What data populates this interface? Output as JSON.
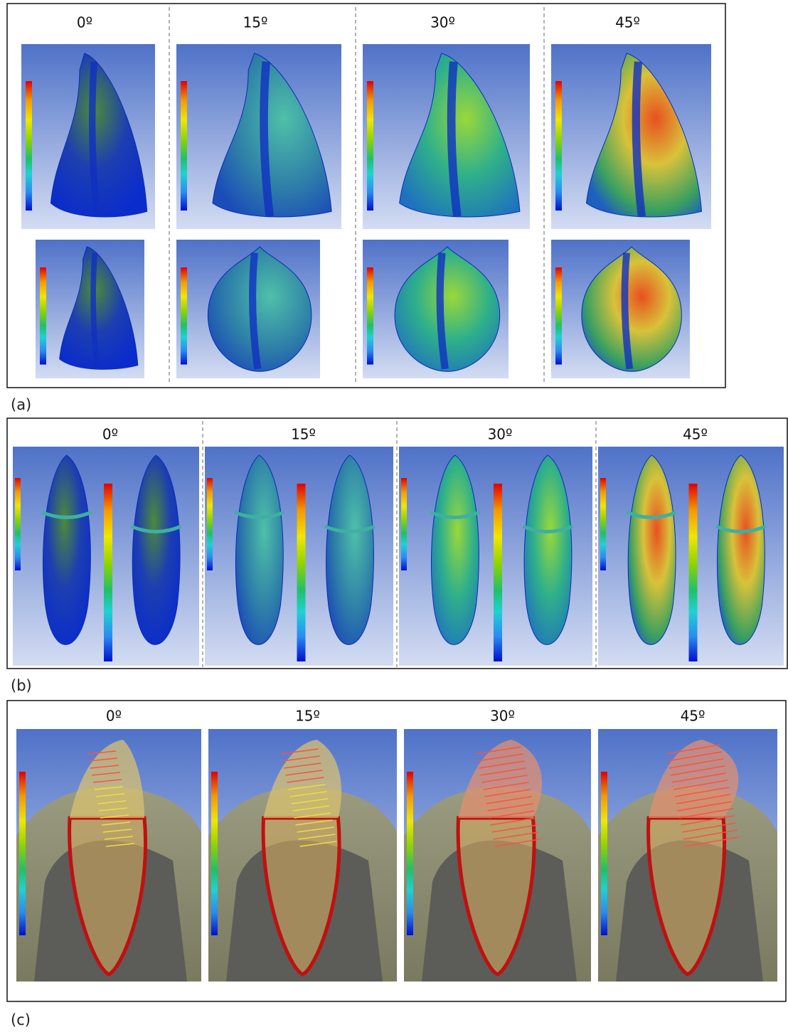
{
  "panels": [
    {
      "label": "(a)",
      "angles": [
        "0º",
        "15º",
        "30º",
        "45º"
      ]
    },
    {
      "label": "(b)",
      "angles": [
        "0º",
        "15º",
        "30º",
        "45º"
      ]
    },
    {
      "label": "(c)",
      "angles": [
        "0º",
        "15º",
        "30º",
        "45º"
      ]
    }
  ]
}
